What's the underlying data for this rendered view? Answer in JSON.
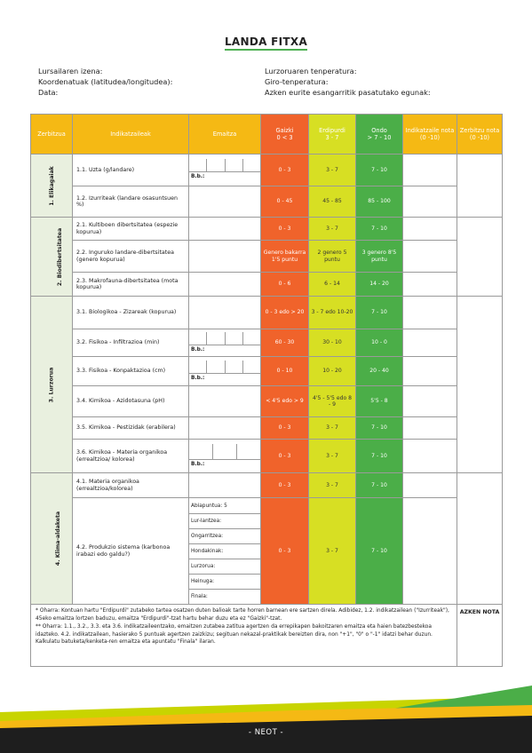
{
  "title": "LANDA FITXA",
  "meta_left": [
    "Lursailaren izena:",
    "Koordenatuak (latitudea/longitudea):",
    "Data:"
  ],
  "meta_right": [
    "Lurzoruaren tenperatura:",
    "Giro-tenperatura:",
    "Azken eurite esangarritik pasatutako egunak:"
  ],
  "headers": {
    "zerbitzua": "Zerbitzua",
    "indikatzaileak": "Indikatzaileak",
    "emaitza": "Emaitza",
    "gaizki": "Gaizki",
    "gaizki_range": "0 < 3",
    "erdipurdi": "Erdipurdi",
    "erdipurdi_range": "3 - 7",
    "ondo": "Ondo",
    "ondo_range": "> 7 - 10",
    "ind_nota": "Indikatzaile nota (0 -10)",
    "zerb_nota": "Zerbitzu nota (0 -10)"
  },
  "sections": [
    "1. Elikagaiak",
    "2. Biodibertsitatea",
    "3. Lurzorua",
    "4. Klima-aldaketa"
  ],
  "bb_label": "B.b.:",
  "rows": [
    {
      "ind": "1.1. Uzta (g/landare)",
      "g": "0 - 3",
      "e": "3 - 7",
      "o": "7 - 10"
    },
    {
      "ind": "1.2. Izurriteak (landare osasuntsuen %)",
      "g": "0 - 45",
      "e": "45 - 85",
      "o": "85 - 100"
    },
    {
      "ind": "2.1. Kultiboen dibertsitatea (espezie kopurua)",
      "g": "0 - 3",
      "e": "3 - 7",
      "o": "7 - 10"
    },
    {
      "ind": "2.2. Inguruko landare-dibertsitatea (genero kopurua)",
      "g": "Genero bakarra 1'5 puntu",
      "e": "2 genero 5 puntu",
      "o": "3 genero 8'5 puntu"
    },
    {
      "ind": "2.3. Makrofauna-dibertsitatea (mota kopurua)",
      "g": "0 - 6",
      "e": "6 - 14",
      "o": "14 - 20"
    },
    {
      "ind": "3.1. Biologikoa - Zizareak (kopurua)",
      "g": "0 - 3 edo > 20",
      "e": "3 - 7 edo 10-20",
      "o": "7 - 10"
    },
    {
      "ind": "3.2. Fisikoa - Infiltrazioa (min)",
      "g": "60 - 30",
      "e": "30 - 10",
      "o": "10 - 0"
    },
    {
      "ind": "3.3. Fisikoa - Konpaktazioa (cm)",
      "g": "0 - 10",
      "e": "10 - 20",
      "o": "20 - 40"
    },
    {
      "ind": "3.4. Kimikoa - Azidotasuna (pH)",
      "g": "< 4'5 edo > 9",
      "e": "4'5 - 5'5 edo 8 - 9",
      "o": "5'5 - 8"
    },
    {
      "ind": "3.5. Kimikoa - Pestizidak (erabilera)",
      "g": "0 - 3",
      "e": "3 - 7",
      "o": "7 - 10"
    },
    {
      "ind": "3.6. Kimikoa - Materia organikoa (errealtzioa/ kolorea)",
      "g": "0 - 3",
      "e": "3 - 7",
      "o": "7 - 10"
    },
    {
      "ind": "4.1. Materia organikoa (errealtzioa/kolorea)",
      "g": "0 - 3",
      "e": "3 - 7",
      "o": "7 - 10"
    },
    {
      "ind": "4.2. Produkzio sistema (karbonoa irabazi edo galdu?)",
      "g": "0 - 3",
      "e": "3 - 7",
      "o": "7 - 10"
    }
  ],
  "produkzio_items": [
    "Abiapuntua:   5",
    "Lur-lantzea:",
    "Ongarritzea:",
    "Hondakinak:",
    "Lurzorua:",
    "Heinuga:",
    "Finala:"
  ],
  "note1": "* Oharra: Kontuan hartu \"Erdipurdi\" zutabeko tartea osatzen duten balioak tarte horren barnean ere sartzen direla. Adibidez, 1.2. indikatzailean (\"Izurriteak\"), 45eko emaitza lortzen baduzu, emaitza \"Erdipurdi\"-tzat hartu behar duzu eta ez \"Gaizki\"-tzat.",
  "note2": "** Oharra: 1.1., 3.2., 3.3. eta 3.6. indikatzaileentzako, emaitzen zutabea zatitua agertzen da errepikapen bakoitzaren emaitza eta haien batezbestekoa idazteko. 4.2. indikatzailean, hasierako 5 puntuak agertzen zaizkizu; segituan nekazal-praktikak bereizten dira, non \"+1\", \"0\" o \"-1\" idatzi behar duzun. Kalkulatu batuketa/kenketa-ren emaitza eta apuntatu \"Finala\" ilaran.",
  "azken_nota": "AZKEN NOTA",
  "footer": "- NEOT -"
}
